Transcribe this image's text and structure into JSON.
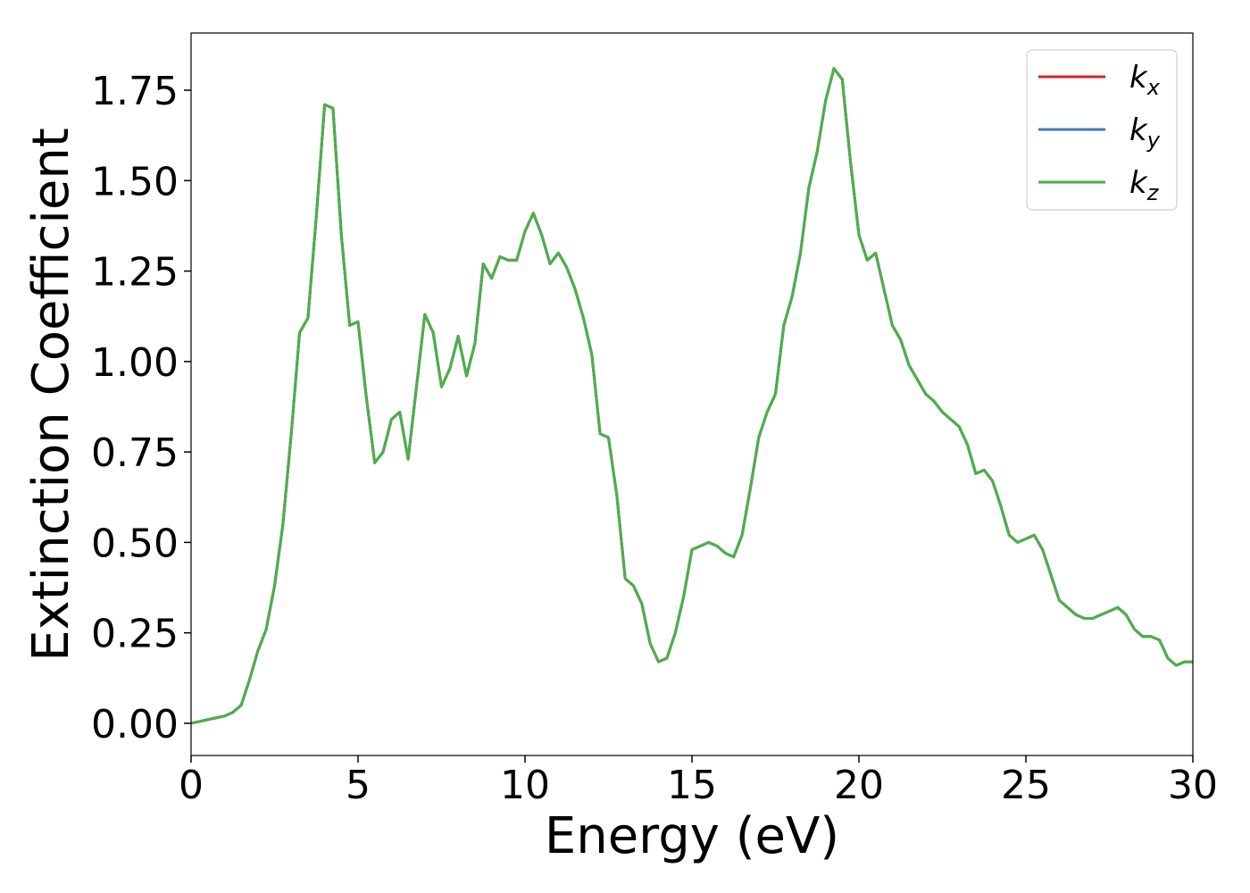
{
  "chart_data": {
    "type": "line",
    "xlabel": "Energy (eV)",
    "ylabel": "Extinction Coefficient",
    "x": [
      0,
      0.25,
      0.5,
      0.75,
      1,
      1.25,
      1.5,
      1.75,
      2,
      2.25,
      2.5,
      2.75,
      3,
      3.25,
      3.5,
      3.75,
      4,
      4.25,
      4.5,
      4.75,
      5,
      5.25,
      5.5,
      5.75,
      6,
      6.25,
      6.5,
      6.75,
      7,
      7.25,
      7.5,
      7.75,
      8,
      8.25,
      8.5,
      8.75,
      9,
      9.25,
      9.5,
      9.75,
      10,
      10.25,
      10.5,
      10.75,
      11,
      11.25,
      11.5,
      11.75,
      12,
      12.25,
      12.5,
      12.75,
      13,
      13.25,
      13.5,
      13.75,
      14,
      14.25,
      14.5,
      14.75,
      15,
      15.25,
      15.5,
      15.75,
      16,
      16.25,
      16.5,
      16.75,
      17,
      17.25,
      17.5,
      17.75,
      18,
      18.25,
      18.5,
      18.75,
      19,
      19.25,
      19.5,
      19.75,
      20,
      20.25,
      20.5,
      20.75,
      21,
      21.25,
      21.5,
      21.75,
      22,
      22.25,
      22.5,
      22.75,
      23,
      23.25,
      23.5,
      23.75,
      24,
      24.25,
      24.5,
      24.75,
      25,
      25.25,
      25.5,
      25.75,
      26,
      26.25,
      26.5,
      26.75,
      27,
      27.25,
      27.5,
      27.75,
      28,
      28.25,
      28.5,
      28.75,
      29,
      29.25,
      29.5,
      29.75,
      30
    ],
    "series": [
      {
        "name": "k_x",
        "color": "#e41a1c",
        "values": [
          0,
          0.005,
          0.01,
          0.015,
          0.02,
          0.03,
          0.05,
          0.12,
          0.2,
          0.26,
          0.38,
          0.55,
          0.8,
          1.08,
          1.12,
          1.4,
          1.71,
          1.7,
          1.35,
          1.1,
          1.11,
          0.9,
          0.72,
          0.75,
          0.84,
          0.86,
          0.73,
          0.93,
          1.13,
          1.08,
          0.93,
          0.98,
          1.07,
          0.96,
          1.05,
          1.27,
          1.23,
          1.29,
          1.28,
          1.28,
          1.36,
          1.41,
          1.35,
          1.27,
          1.3,
          1.26,
          1.2,
          1.12,
          1.02,
          0.8,
          0.79,
          0.63,
          0.4,
          0.38,
          0.33,
          0.22,
          0.17,
          0.18,
          0.25,
          0.35,
          0.48,
          0.49,
          0.5,
          0.49,
          0.47,
          0.46,
          0.52,
          0.65,
          0.79,
          0.86,
          0.91,
          1.1,
          1.18,
          1.3,
          1.48,
          1.58,
          1.72,
          1.81,
          1.78,
          1.55,
          1.35,
          1.28,
          1.3,
          1.2,
          1.1,
          1.06,
          0.99,
          0.95,
          0.91,
          0.89,
          0.86,
          0.84,
          0.82,
          0.77,
          0.69,
          0.7,
          0.67,
          0.6,
          0.52,
          0.5,
          0.51,
          0.52,
          0.48,
          0.41,
          0.34,
          0.32,
          0.3,
          0.29,
          0.29,
          0.3,
          0.31,
          0.32,
          0.3,
          0.26,
          0.24,
          0.24,
          0.23,
          0.18,
          0.16,
          0.17,
          0.17
        ]
      },
      {
        "name": "k_y",
        "color": "#377eb8",
        "values": [
          0,
          0.005,
          0.01,
          0.015,
          0.02,
          0.03,
          0.05,
          0.12,
          0.2,
          0.26,
          0.38,
          0.55,
          0.8,
          1.08,
          1.12,
          1.4,
          1.71,
          1.7,
          1.35,
          1.1,
          1.11,
          0.9,
          0.72,
          0.75,
          0.84,
          0.86,
          0.73,
          0.93,
          1.13,
          1.08,
          0.93,
          0.98,
          1.07,
          0.96,
          1.05,
          1.27,
          1.23,
          1.29,
          1.28,
          1.28,
          1.36,
          1.41,
          1.35,
          1.27,
          1.3,
          1.26,
          1.2,
          1.12,
          1.02,
          0.8,
          0.79,
          0.63,
          0.4,
          0.38,
          0.33,
          0.22,
          0.17,
          0.18,
          0.25,
          0.35,
          0.48,
          0.49,
          0.5,
          0.49,
          0.47,
          0.46,
          0.52,
          0.65,
          0.79,
          0.86,
          0.91,
          1.1,
          1.18,
          1.3,
          1.48,
          1.58,
          1.72,
          1.81,
          1.78,
          1.55,
          1.35,
          1.28,
          1.3,
          1.2,
          1.1,
          1.06,
          0.99,
          0.95,
          0.91,
          0.89,
          0.86,
          0.84,
          0.82,
          0.77,
          0.69,
          0.7,
          0.67,
          0.6,
          0.52,
          0.5,
          0.51,
          0.52,
          0.48,
          0.41,
          0.34,
          0.32,
          0.3,
          0.29,
          0.29,
          0.3,
          0.31,
          0.32,
          0.3,
          0.26,
          0.24,
          0.24,
          0.23,
          0.18,
          0.16,
          0.17,
          0.17
        ]
      },
      {
        "name": "k_z",
        "color": "#4daf4a",
        "values": [
          0,
          0.005,
          0.01,
          0.015,
          0.02,
          0.03,
          0.05,
          0.12,
          0.2,
          0.26,
          0.38,
          0.55,
          0.8,
          1.08,
          1.12,
          1.4,
          1.71,
          1.7,
          1.35,
          1.1,
          1.11,
          0.9,
          0.72,
          0.75,
          0.84,
          0.86,
          0.73,
          0.93,
          1.13,
          1.08,
          0.93,
          0.98,
          1.07,
          0.96,
          1.05,
          1.27,
          1.23,
          1.29,
          1.28,
          1.28,
          1.36,
          1.41,
          1.35,
          1.27,
          1.3,
          1.26,
          1.2,
          1.12,
          1.02,
          0.8,
          0.79,
          0.63,
          0.4,
          0.38,
          0.33,
          0.22,
          0.17,
          0.18,
          0.25,
          0.35,
          0.48,
          0.49,
          0.5,
          0.49,
          0.47,
          0.46,
          0.52,
          0.65,
          0.79,
          0.86,
          0.91,
          1.1,
          1.18,
          1.3,
          1.48,
          1.58,
          1.72,
          1.81,
          1.78,
          1.55,
          1.35,
          1.28,
          1.3,
          1.2,
          1.1,
          1.06,
          0.99,
          0.95,
          0.91,
          0.89,
          0.86,
          0.84,
          0.82,
          0.77,
          0.69,
          0.7,
          0.67,
          0.6,
          0.52,
          0.5,
          0.51,
          0.52,
          0.48,
          0.41,
          0.34,
          0.32,
          0.3,
          0.29,
          0.29,
          0.3,
          0.31,
          0.32,
          0.3,
          0.26,
          0.24,
          0.24,
          0.23,
          0.18,
          0.16,
          0.17,
          0.17
        ]
      }
    ],
    "xlim": [
      0,
      30
    ],
    "xticks": [
      0,
      5,
      10,
      15,
      20,
      25,
      30
    ],
    "ylim": [
      -0.089,
      1.908
    ],
    "yticks": [
      {
        "value": 0,
        "label": "0.00"
      },
      {
        "value": 0.25,
        "label": "0.25"
      },
      {
        "value": 0.5,
        "label": "0.50"
      },
      {
        "value": 0.75,
        "label": "0.75"
      },
      {
        "value": 1,
        "label": "1.00"
      },
      {
        "value": 1.25,
        "label": "1.25"
      },
      {
        "value": 1.5,
        "label": "1.50"
      },
      {
        "value": 1.75,
        "label": "1.75"
      }
    ],
    "legend": "upper right"
  }
}
